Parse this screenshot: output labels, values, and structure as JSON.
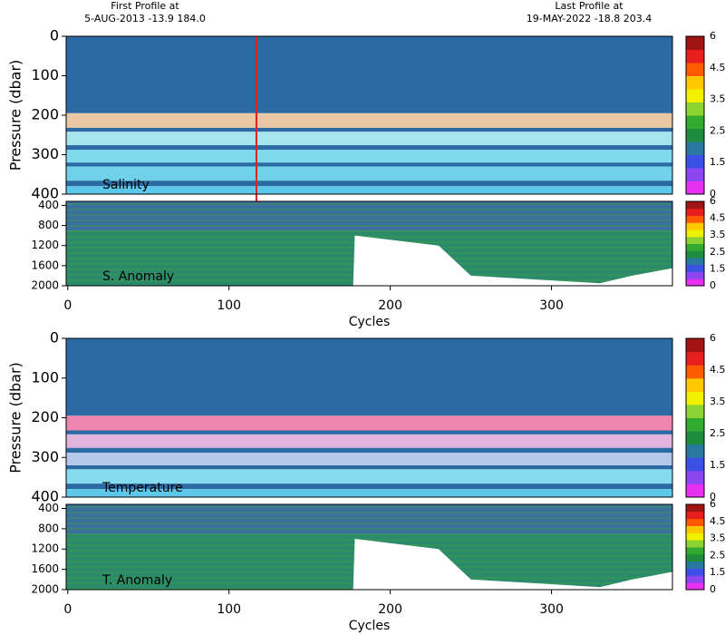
{
  "header": {
    "first_label": "First Profile at",
    "first_value": "5-AUG-2013   -13.9 184.0",
    "last_label": "Last Profile at",
    "last_value": "19-MAY-2022   -18.8 203.4"
  },
  "colorbar": {
    "labels": [
      0,
      1.5,
      2.5,
      3.5,
      4.5,
      6
    ],
    "colors": [
      "#e632f0",
      "#8c46f0",
      "#3c50e6",
      "#2878a0",
      "#1e8c3c",
      "#32aa32",
      "#8cd232",
      "#f0f000",
      "#ffc800",
      "#ff5a00",
      "#e61e1e",
      "#a01414"
    ]
  },
  "chart_data": [
    {
      "type": "heatmap",
      "label": "Salinity",
      "ylabel": "Pressure (dbar)",
      "xlim": [
        -1,
        375
      ],
      "ylim": [
        400,
        0
      ],
      "yticks": [
        0,
        100,
        200,
        300,
        400
      ],
      "marker_x": 117,
      "bands": [
        {
          "from": 0,
          "to": 195,
          "color": "#2b6aa3"
        },
        {
          "from": 195,
          "to": 232,
          "color": "#e8c9a4"
        },
        {
          "from": 232,
          "to": 242,
          "color": "#2b6aa3"
        },
        {
          "from": 242,
          "to": 276,
          "color": "#a6e4ee"
        },
        {
          "from": 276,
          "to": 288,
          "color": "#2b6aa3"
        },
        {
          "from": 288,
          "to": 320,
          "color": "#7fdaee"
        },
        {
          "from": 320,
          "to": 330,
          "color": "#2b6aa3"
        },
        {
          "from": 330,
          "to": 366,
          "color": "#6fd2ea"
        },
        {
          "from": 366,
          "to": 380,
          "color": "#2b6aa3"
        },
        {
          "from": 380,
          "to": 400,
          "color": "#5ec8ea"
        }
      ]
    },
    {
      "type": "anomaly",
      "label": "S. Anomaly",
      "xlim": [
        -1,
        375
      ],
      "ylim": [
        2000,
        320
      ],
      "yticks": [
        400,
        800,
        1200,
        1600,
        2000
      ],
      "xticks": [
        0,
        100,
        200,
        300
      ],
      "xlabel": "Cycles",
      "bands": [
        {
          "from": 320,
          "to": 900,
          "color": "#3a6f9e"
        },
        {
          "from": 900,
          "to": 2000,
          "color": "#2a8a6a"
        }
      ],
      "depth_x": [
        0,
        177,
        178,
        230,
        250,
        330,
        350,
        375
      ],
      "depth_y": [
        2000,
        2000,
        1000,
        1200,
        1800,
        1950,
        1800,
        1650
      ]
    },
    {
      "type": "heatmap",
      "label": "Temperature",
      "ylabel": "Pressure (dbar)",
      "xlim": [
        -1,
        375
      ],
      "ylim": [
        400,
        0
      ],
      "yticks": [
        0,
        100,
        200,
        300,
        400
      ],
      "bands": [
        {
          "from": 0,
          "to": 195,
          "color": "#2b6aa3"
        },
        {
          "from": 195,
          "to": 232,
          "color": "#ee86b0"
        },
        {
          "from": 232,
          "to": 242,
          "color": "#2b6aa3"
        },
        {
          "from": 242,
          "to": 276,
          "color": "#e0b4dc"
        },
        {
          "from": 276,
          "to": 288,
          "color": "#2b6aa3"
        },
        {
          "from": 288,
          "to": 320,
          "color": "#b4c8ea"
        },
        {
          "from": 320,
          "to": 330,
          "color": "#2b6aa3"
        },
        {
          "from": 330,
          "to": 366,
          "color": "#86dcee"
        },
        {
          "from": 366,
          "to": 380,
          "color": "#2b6aa3"
        },
        {
          "from": 380,
          "to": 400,
          "color": "#5ec8ea"
        }
      ]
    },
    {
      "type": "anomaly",
      "label": "T. Anomaly",
      "xlim": [
        -1,
        375
      ],
      "ylim": [
        2000,
        320
      ],
      "yticks": [
        400,
        800,
        1200,
        1600,
        2000
      ],
      "xticks": [
        0,
        100,
        200,
        300
      ],
      "xlabel": "Cycles",
      "bands": [
        {
          "from": 320,
          "to": 900,
          "color": "#3a6f9e"
        },
        {
          "from": 900,
          "to": 2000,
          "color": "#2a8a6a"
        }
      ],
      "depth_x": [
        0,
        177,
        178,
        230,
        250,
        330,
        350,
        375
      ],
      "depth_y": [
        2000,
        2000,
        1000,
        1200,
        1800,
        1950,
        1800,
        1650
      ]
    }
  ]
}
